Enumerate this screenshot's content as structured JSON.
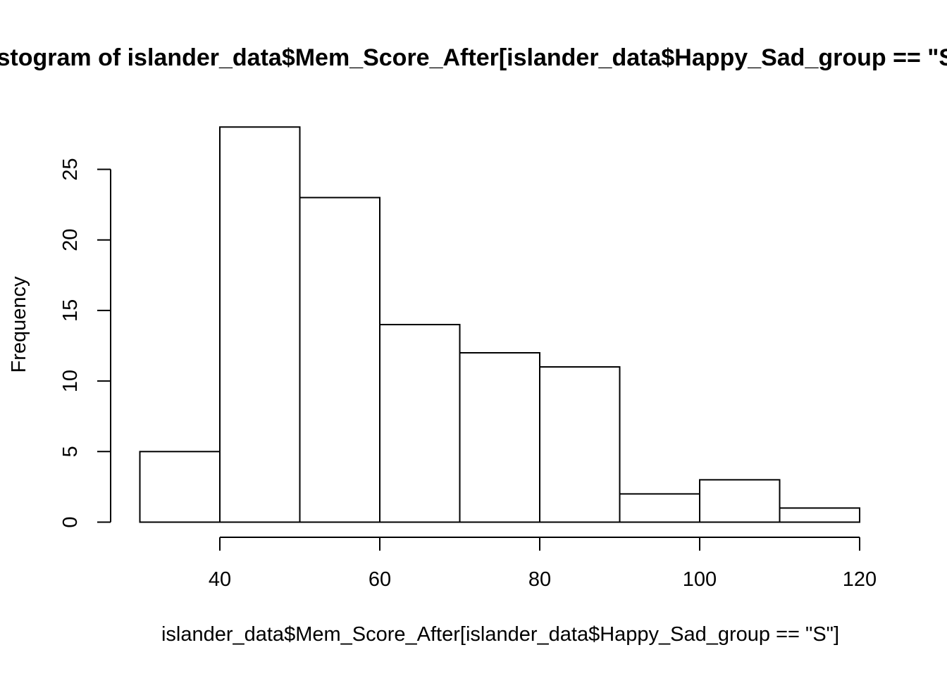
{
  "chart_data": {
    "type": "bar",
    "title": "Histogram of islander_data$Mem_Score_After[islander_data$Happy_Sad_group == \"S\"]",
    "xlabel": "islander_data$Mem_Score_After[islander_data$Happy_Sad_group == \"S\"]",
    "ylabel": "Frequency",
    "bins": [
      {
        "from": 30,
        "to": 40,
        "count": 5
      },
      {
        "from": 40,
        "to": 50,
        "count": 28
      },
      {
        "from": 50,
        "to": 60,
        "count": 23
      },
      {
        "from": 60,
        "to": 70,
        "count": 14
      },
      {
        "from": 70,
        "to": 80,
        "count": 12
      },
      {
        "from": 80,
        "to": 90,
        "count": 11
      },
      {
        "from": 90,
        "to": 100,
        "count": 2
      },
      {
        "from": 100,
        "to": 110,
        "count": 3
      },
      {
        "from": 110,
        "to": 120,
        "count": 1
      }
    ],
    "x_ticks": [
      40,
      60,
      80,
      100,
      120
    ],
    "y_ticks": [
      0,
      5,
      10,
      15,
      20,
      25
    ],
    "xlim": [
      30,
      120
    ],
    "ylim": [
      0,
      28
    ],
    "grid": false,
    "bar_fill": "#ffffff",
    "bar_stroke": "#000000"
  }
}
